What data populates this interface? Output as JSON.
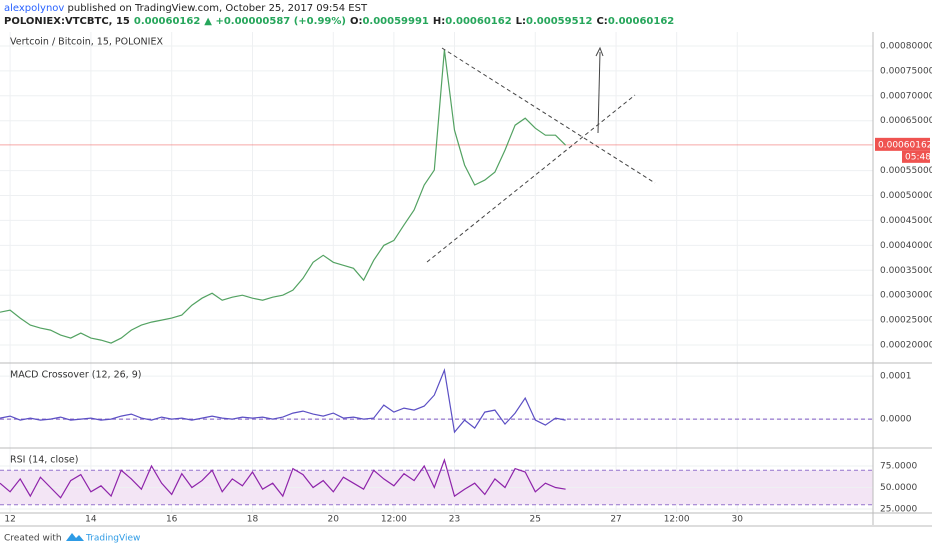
{
  "header": {
    "user": "alexpolynov",
    "published": " published on TradingView.com, October 25, 2017 09:54 EST",
    "symbol": "POLONIEX:VTCBTC, 15",
    "price": "0.00060162",
    "change": "▲ +0.00000587 (+0.99%)",
    "ohlc": [
      {
        "label": "O:",
        "value": "0.00059991"
      },
      {
        "label": "H:",
        "value": "0.00060162"
      },
      {
        "label": "L:",
        "value": "0.00059512"
      },
      {
        "label": "C:",
        "value": "0.00060162"
      }
    ]
  },
  "footer": {
    "created": "Created with",
    "brand": "TradingView"
  },
  "chart_data": [
    {
      "type": "line",
      "title": "Vertcoin / Bitcoin, 15, POLONIEX",
      "color": "#53a262",
      "grid": true,
      "x": [
        11.75,
        12,
        12.25,
        12.5,
        12.75,
        13,
        13.25,
        13.5,
        13.75,
        14,
        14.25,
        14.5,
        14.75,
        15,
        15.25,
        15.5,
        15.75,
        16,
        16.25,
        16.5,
        16.75,
        17,
        17.25,
        17.5,
        17.75,
        18,
        18.25,
        18.5,
        18.75,
        19,
        19.25,
        19.5,
        19.75,
        20,
        20.25,
        20.5,
        20.75,
        21,
        21.25,
        21.5,
        21.75,
        22,
        22.25,
        22.5,
        22.75,
        23,
        23.25,
        23.5,
        23.75,
        24,
        24.25,
        24.5,
        24.75,
        25,
        25.25,
        25.5,
        25.75
      ],
      "values": [
        0.000266,
        0.00027,
        0.000254,
        0.00024,
        0.000234,
        0.00023,
        0.00022,
        0.000214,
        0.000224,
        0.000214,
        0.00021,
        0.000204,
        0.000214,
        0.00023,
        0.00024,
        0.000246,
        0.00025,
        0.000254,
        0.00026,
        0.00028,
        0.000294,
        0.000304,
        0.00029,
        0.000296,
        0.0003,
        0.000294,
        0.00029,
        0.000296,
        0.0003,
        0.00031,
        0.000334,
        0.000366,
        0.00038,
        0.000366,
        0.00036,
        0.000354,
        0.00033,
        0.00037,
        0.0004,
        0.00041,
        0.000441,
        0.000471,
        0.000521,
        0.000551,
        0.000792,
        0.000631,
        0.000561,
        0.000521,
        0.000531,
        0.000547,
        0.000591,
        0.000641,
        0.000655,
        0.000635,
        0.000621,
        0.000621,
        0.000601
      ],
      "xlim": [
        11.75,
        33.36
      ],
      "xticks": [
        12,
        14,
        16,
        18,
        20,
        {
          "value": 21.5,
          "label": "12:00"
        },
        23,
        25,
        27,
        {
          "value": 28.5,
          "label": "12:00"
        },
        30
      ],
      "ylim": [
        0.000166,
        0.000828
      ],
      "yticks": [
        {
          "value": 0.0002,
          "label": "0.00020000"
        },
        {
          "value": 0.00025,
          "label": "0.00025000"
        },
        {
          "value": 0.0003,
          "label": "0.00030000"
        },
        {
          "value": 0.00035,
          "label": "0.00035000"
        },
        {
          "value": 0.0004,
          "label": "0.00040000"
        },
        {
          "value": 0.00045,
          "label": "0.00045000"
        },
        {
          "value": 0.0005,
          "label": "0.00050000"
        },
        {
          "value": 0.00055,
          "label": "0.00055000"
        },
        {
          "value": 0.00065,
          "label": "0.00065000"
        },
        {
          "value": 0.0007,
          "label": "0.00070000"
        },
        {
          "value": 0.00075,
          "label": "0.00075000"
        },
        {
          "value": 0.0008,
          "label": "0.00080000"
        }
      ],
      "last_price": 0.00060162,
      "last_label": "0.00060162",
      "countdown": "05:48",
      "last_color": "#ef5350"
    },
    {
      "type": "line",
      "title": "MACD Crossover (12, 26, 9)",
      "color": "#5b4fc4",
      "grid": true,
      "values": [
        2.3e-06,
        7e-06,
        -2.3e-06,
        2.3e-06,
        -2.3e-06,
        0,
        4.7e-06,
        -2.3e-06,
        0,
        2.3e-06,
        -2.3e-06,
        0,
        7e-06,
        1.16e-05,
        2.3e-06,
        -2.3e-06,
        4.7e-06,
        0,
        2.3e-06,
        -2.3e-06,
        2.3e-06,
        7e-06,
        2.3e-06,
        0,
        4.7e-06,
        2.3e-06,
        4.7e-06,
        0,
        4.7e-06,
        1.4e-05,
        1.86e-05,
        1.16e-05,
        7e-06,
        1.4e-05,
        2.3e-06,
        4.7e-06,
        0,
        2.3e-06,
        3.26e-05,
        1.63e-05,
        2.56e-05,
        2.09e-05,
        3.02e-05,
        5.58e-05,
        0.000114,
        -3.02e-05,
        -2.3e-06,
        -2.09e-05,
        1.63e-05,
        2.09e-05,
        -1.16e-05,
        1.4e-05,
        4.88e-05,
        -2.3e-06,
        -1.4e-05,
        2.3e-06,
        -2.3e-06
      ],
      "ylim": [
        -6.5e-05,
        0.000126
      ],
      "yticks": [
        {
          "value": 0,
          "label": "0.0000"
        },
        0.0001
      ],
      "zero_line": 0
    },
    {
      "type": "line",
      "title": "RSI (14, close)",
      "color": "#8e24aa",
      "grid": true,
      "values": [
        55,
        45,
        60,
        40,
        62,
        50,
        38,
        58,
        65,
        45,
        52,
        40,
        70,
        60,
        48,
        75,
        55,
        42,
        66,
        50,
        58,
        70,
        45,
        60,
        52,
        68,
        48,
        55,
        40,
        72,
        65,
        50,
        58,
        45,
        62,
        55,
        48,
        70,
        60,
        52,
        66,
        58,
        75,
        50,
        82,
        40,
        48,
        55,
        42,
        60,
        50,
        72,
        68,
        45,
        55,
        50,
        48
      ],
      "ylim": [
        21.5,
        93.6
      ],
      "yticks": [
        {
          "value": 25,
          "label": "25.0000"
        },
        {
          "value": 50,
          "label": "50.0000"
        },
        {
          "value": 75,
          "label": "75.0000"
        }
      ],
      "band": [
        30,
        70
      ],
      "band_color": "#f3e5f5"
    }
  ]
}
